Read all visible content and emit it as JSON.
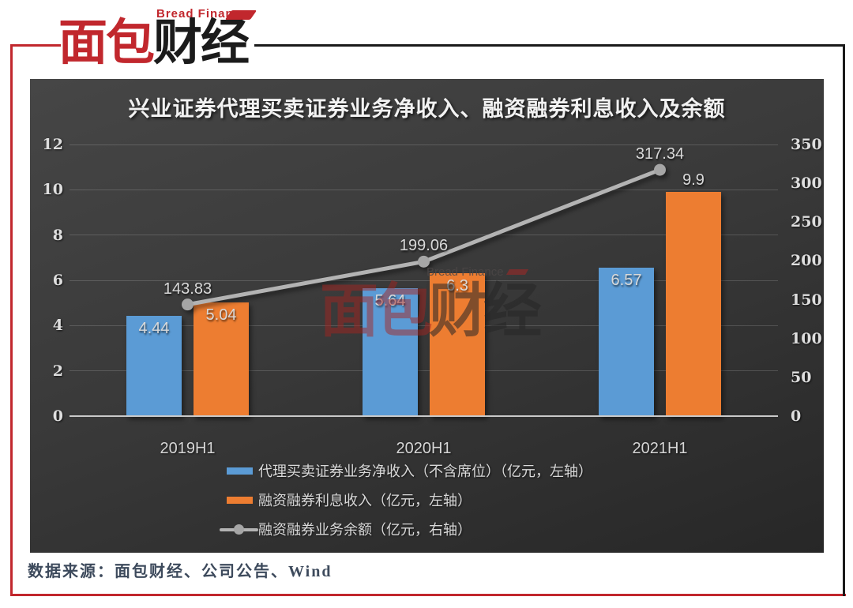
{
  "brand": {
    "logo_en": "Bread Finance",
    "logo_cn_red": "面包",
    "logo_cn_black": "财经"
  },
  "colors": {
    "brand_red": "#C1272D",
    "frame_black": "#1A1A1A",
    "bar_blue": "#5B9BD5",
    "bar_orange": "#ED7D31",
    "line_gray": "#B3B3B3",
    "marker_gray": "#A6A6A6",
    "panel_top": "#464646",
    "panel_bottom": "#272727",
    "axis_text": "#DEDEDE",
    "data_label_text": "#D9D9D9",
    "source_text": "#3D4A5C"
  },
  "chart_data": {
    "type": "bar",
    "title": "兴业证券代理买卖证券业务净收入、融资融券利息收入及余额",
    "categories": [
      "2019H1",
      "2020H1",
      "2021H1"
    ],
    "series": [
      {
        "name": "代理买卖证券业务净收入（不含席位）（亿元，左轴）",
        "type": "bar",
        "axis": "left",
        "color": "#5B9BD5",
        "values": [
          4.44,
          5.64,
          6.57
        ],
        "label_positions": [
          "inside",
          "inside",
          "inside"
        ]
      },
      {
        "name": "融资融券利息收入（亿元，左轴）",
        "type": "bar",
        "axis": "left",
        "color": "#ED7D31",
        "values": [
          5.04,
          6.3,
          9.9
        ],
        "label_positions": [
          "inside",
          "inside",
          "outside"
        ]
      },
      {
        "name": "融资融券业务余额（亿元，右轴）",
        "type": "line",
        "axis": "right",
        "color": "#B3B3B3",
        "values": [
          143.83,
          199.06,
          317.34
        ],
        "label_positions": [
          "above",
          "above",
          "above"
        ]
      }
    ],
    "left_axis": {
      "min": 0,
      "max": 12,
      "step": 2,
      "ticks": [
        0,
        2,
        4,
        6,
        8,
        10,
        12
      ]
    },
    "right_axis": {
      "min": 0,
      "max": 350,
      "step": 50,
      "ticks": [
        0,
        50,
        100,
        150,
        200,
        250,
        300,
        350
      ]
    },
    "grid": true,
    "legend_position": "bottom"
  },
  "watermark": {
    "en": "Bread Finance",
    "cn_red": "面包",
    "cn_black": "财经"
  },
  "source_note": "数据来源：面包财经、公司公告、Wind"
}
